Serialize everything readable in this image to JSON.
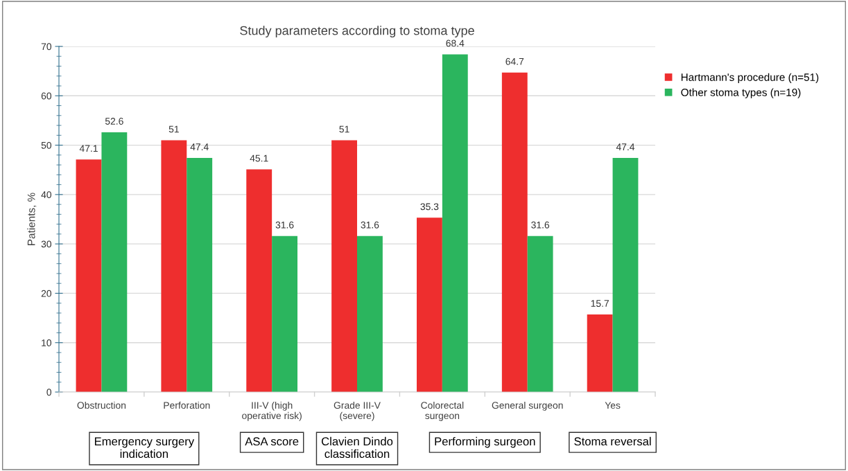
{
  "chart_data": {
    "type": "bar",
    "title": "Study parameters according to stoma type",
    "ylabel": "Patients, %",
    "categories": [
      "Obstruction",
      "Perforation",
      "III-V (high\noperative risk)",
      "Grade III-V\n(severe)",
      "Colorectal\nsurgeon",
      "General surgeon",
      "Yes"
    ],
    "series": [
      {
        "name": "Hartmann's procedure (n=51)",
        "color": "#ee2e2e",
        "values": [
          47.1,
          51,
          45.1,
          51,
          35.3,
          64.7,
          15.7
        ]
      },
      {
        "name": "Other stoma types (n=19)",
        "color": "#2bb55e",
        "values": [
          52.6,
          47.4,
          31.6,
          31.6,
          68.4,
          31.6,
          47.4
        ]
      }
    ],
    "ylim": [
      0,
      70
    ],
    "yticks": [
      0,
      10,
      20,
      30,
      40,
      50,
      60,
      70
    ],
    "grid": "y",
    "legend": "top right",
    "data_labels": true,
    "annotations": [
      "Emergency surgery\nindication",
      "ASA score",
      "Clavien Dindo\nclassification",
      "Performing surgeon",
      "Stoma reversal"
    ]
  }
}
